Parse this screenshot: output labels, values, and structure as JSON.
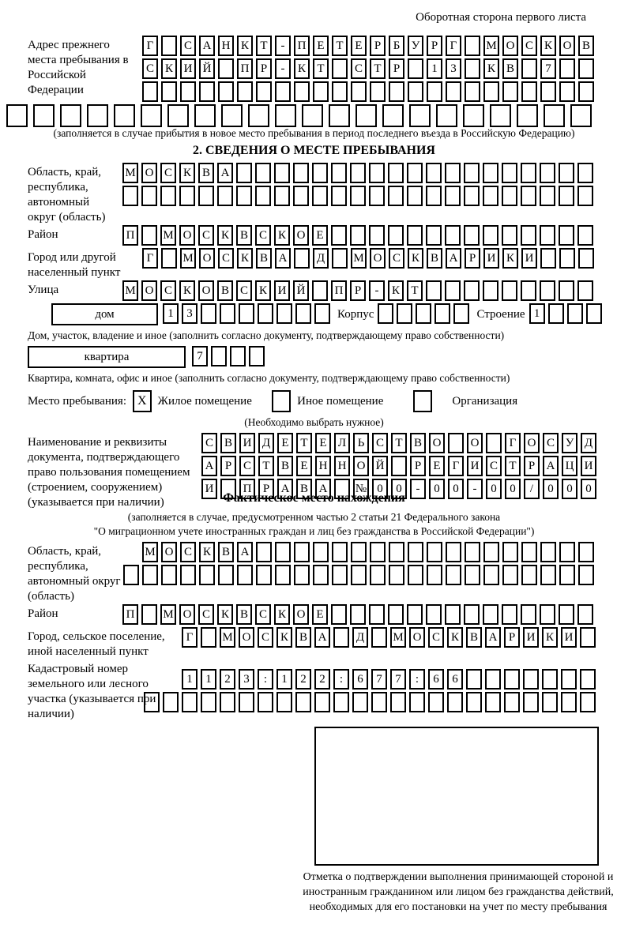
{
  "header": {
    "note": "Оборотная сторона первого листа"
  },
  "prev_address": {
    "label": "Адрес прежнего места пребывания в Российской Федерации",
    "row1": [
      "Г",
      "",
      "С",
      "А",
      "Н",
      "К",
      "Т",
      "-",
      "П",
      "Е",
      "Т",
      "Е",
      "Р",
      "Б",
      "У",
      "Р",
      "Г",
      "",
      "М",
      "О",
      "С",
      "К",
      "О",
      "В"
    ],
    "row2": [
      "С",
      "К",
      "И",
      "Й",
      "",
      "П",
      "Р",
      "-",
      "К",
      "Т",
      "",
      "С",
      "Т",
      "Р",
      "",
      "1",
      "3",
      "",
      "К",
      "В",
      "",
      "7",
      "",
      ""
    ],
    "row3": [
      "",
      "",
      "",
      "",
      "",
      "",
      "",
      "",
      "",
      "",
      "",
      "",
      "",
      "",
      "",
      "",
      "",
      "",
      "",
      "",
      "",
      "",
      "",
      ""
    ],
    "row4": [
      "",
      "",
      "",
      "",
      "",
      "",
      "",
      "",
      "",
      "",
      "",
      "",
      "",
      "",
      "",
      "",
      "",
      "",
      "",
      "",
      "",
      ""
    ],
    "note": "(заполняется в случае прибытия в новое место пребывания в период последнего въезда в Российскую Федерацию)"
  },
  "section2": {
    "title": "2. СВЕДЕНИЯ О МЕСТЕ ПРЕБЫВАНИЯ",
    "region": {
      "label": "Область, край, республика, автономный округ (область)",
      "row1": [
        "М",
        "О",
        "С",
        "К",
        "В",
        "А",
        "",
        "",
        "",
        "",
        "",
        "",
        "",
        "",
        "",
        "",
        "",
        "",
        "",
        "",
        "",
        "",
        "",
        "",
        ""
      ],
      "row2": [
        "",
        "",
        "",
        "",
        "",
        "",
        "",
        "",
        "",
        "",
        "",
        "",
        "",
        "",
        "",
        "",
        "",
        "",
        "",
        "",
        "",
        "",
        "",
        "",
        ""
      ]
    },
    "district": {
      "label": "Район",
      "row": [
        "П",
        "",
        "М",
        "О",
        "С",
        "К",
        "В",
        "С",
        "К",
        "О",
        "Е",
        "",
        "",
        "",
        "",
        "",
        "",
        "",
        "",
        "",
        "",
        "",
        "",
        "",
        ""
      ]
    },
    "city": {
      "label": "Город или другой населенный пункт",
      "row": [
        "Г",
        "",
        "М",
        "О",
        "С",
        "К",
        "В",
        "А",
        "",
        "Д",
        "",
        "М",
        "О",
        "С",
        "К",
        "В",
        "А",
        "Р",
        "И",
        "К",
        "И",
        "",
        "",
        ""
      ]
    },
    "street": {
      "label": "Улица",
      "row": [
        "М",
        "О",
        "С",
        "К",
        "О",
        "В",
        "С",
        "К",
        "И",
        "Й",
        "",
        "П",
        "Р",
        "-",
        "К",
        "Т",
        "",
        "",
        "",
        "",
        "",
        "",
        "",
        "",
        ""
      ]
    },
    "house": {
      "box_label": "дом",
      "cells": [
        "1",
        "3",
        "",
        "",
        "",
        "",
        "",
        "",
        ""
      ],
      "korpus_label": "Корпус",
      "korpus_cells": [
        "",
        "",
        "",
        "",
        ""
      ],
      "stroenie_label": "Строение",
      "stroenie_cells": [
        "1",
        "",
        "",
        ""
      ],
      "note": "Дом, участок, владение и иное (заполнить согласно документу, подтверждающему право собственности)"
    },
    "apartment": {
      "box_label": "квартира",
      "cells": [
        "7",
        "",
        "",
        ""
      ],
      "note": "Квартира, комната, офис и иное (заполнить согласно документу, подтверждающему право собственности)"
    },
    "stay_type": {
      "label": "Место пребывания:",
      "options": [
        {
          "mark": "X",
          "label": "Жилое помещение"
        },
        {
          "mark": "",
          "label": "Иное помещение"
        },
        {
          "mark": "",
          "label": "Организация"
        }
      ],
      "note": "(Необходимо выбрать нужное)"
    },
    "document": {
      "label": "Наименование и реквизиты документа, подтверждающего право пользования помещением (строением, сооружением) (указывается при наличии)",
      "row1": [
        "С",
        "В",
        "И",
        "Д",
        "Е",
        "Т",
        "Е",
        "Л",
        "Ь",
        "С",
        "Т",
        "В",
        "О",
        "",
        "О",
        "",
        "Г",
        "О",
        "С",
        "У",
        "Д"
      ],
      "row2": [
        "А",
        "Р",
        "С",
        "Т",
        "В",
        "Е",
        "Н",
        "Н",
        "О",
        "Й",
        "",
        "Р",
        "Е",
        "Г",
        "И",
        "С",
        "Т",
        "Р",
        "А",
        "Ц",
        "И"
      ],
      "row3": [
        "И",
        "",
        "П",
        "Р",
        "А",
        "В",
        "А",
        "",
        "№",
        "0",
        "0",
        "-",
        "0",
        "0",
        "-",
        "0",
        "0",
        "/",
        "0",
        "0",
        "0"
      ]
    }
  },
  "actual_location": {
    "title": "Фактическое место нахождения",
    "note_line1": "(заполняется в случае, предусмотренном частью 2 статьи 21 Федерального закона",
    "note_line2": "\"О миграционном учете иностранных граждан и лиц без гражданства в Российской Федерации\")",
    "region": {
      "label": "Область, край, республика, автономный округ (область)",
      "row1": [
        "М",
        "О",
        "С",
        "К",
        "В",
        "А",
        "",
        "",
        "",
        "",
        "",
        "",
        "",
        "",
        "",
        "",
        "",
        "",
        "",
        "",
        "",
        "",
        "",
        ""
      ],
      "row2": [
        "",
        "",
        "",
        "",
        "",
        "",
        "",
        "",
        "",
        "",
        "",
        "",
        "",
        "",
        "",
        "",
        "",
        "",
        "",
        "",
        "",
        "",
        "",
        "",
        ""
      ]
    },
    "district": {
      "label": "Район",
      "row": [
        "П",
        "",
        "М",
        "О",
        "С",
        "К",
        "В",
        "С",
        "К",
        "О",
        "Е",
        "",
        "",
        "",
        "",
        "",
        "",
        "",
        "",
        "",
        "",
        "",
        "",
        "",
        ""
      ]
    },
    "city": {
      "label": "Город, сельское поселение, иной населенный пункт",
      "row": [
        "Г",
        "",
        "М",
        "О",
        "С",
        "К",
        "В",
        "А",
        "",
        "Д",
        "",
        "М",
        "О",
        "С",
        "К",
        "В",
        "А",
        "Р",
        "И",
        "К",
        "И",
        ""
      ]
    },
    "cadastral": {
      "label": "Кадастровый номер земельного или лесного участка (указывается при наличии)",
      "row1": [
        "1",
        "1",
        "2",
        "3",
        ":",
        "1",
        "2",
        "2",
        ":",
        "6",
        "7",
        "7",
        ":",
        "6",
        "6",
        "",
        "",
        "",
        "",
        "",
        "",
        ""
      ],
      "row2": [
        "",
        "",
        "",
        "",
        "",
        "",
        "",
        "",
        "",
        "",
        "",
        "",
        "",
        "",
        "",
        "",
        "",
        "",
        "",
        "",
        "",
        "",
        "",
        ""
      ]
    },
    "stamp_note": "Отметка о подтверждении выполнения принимающей стороной и иностранным гражданином или лицом без гражданства действий, необходимых для его постановки на учет по месту пребывания"
  }
}
